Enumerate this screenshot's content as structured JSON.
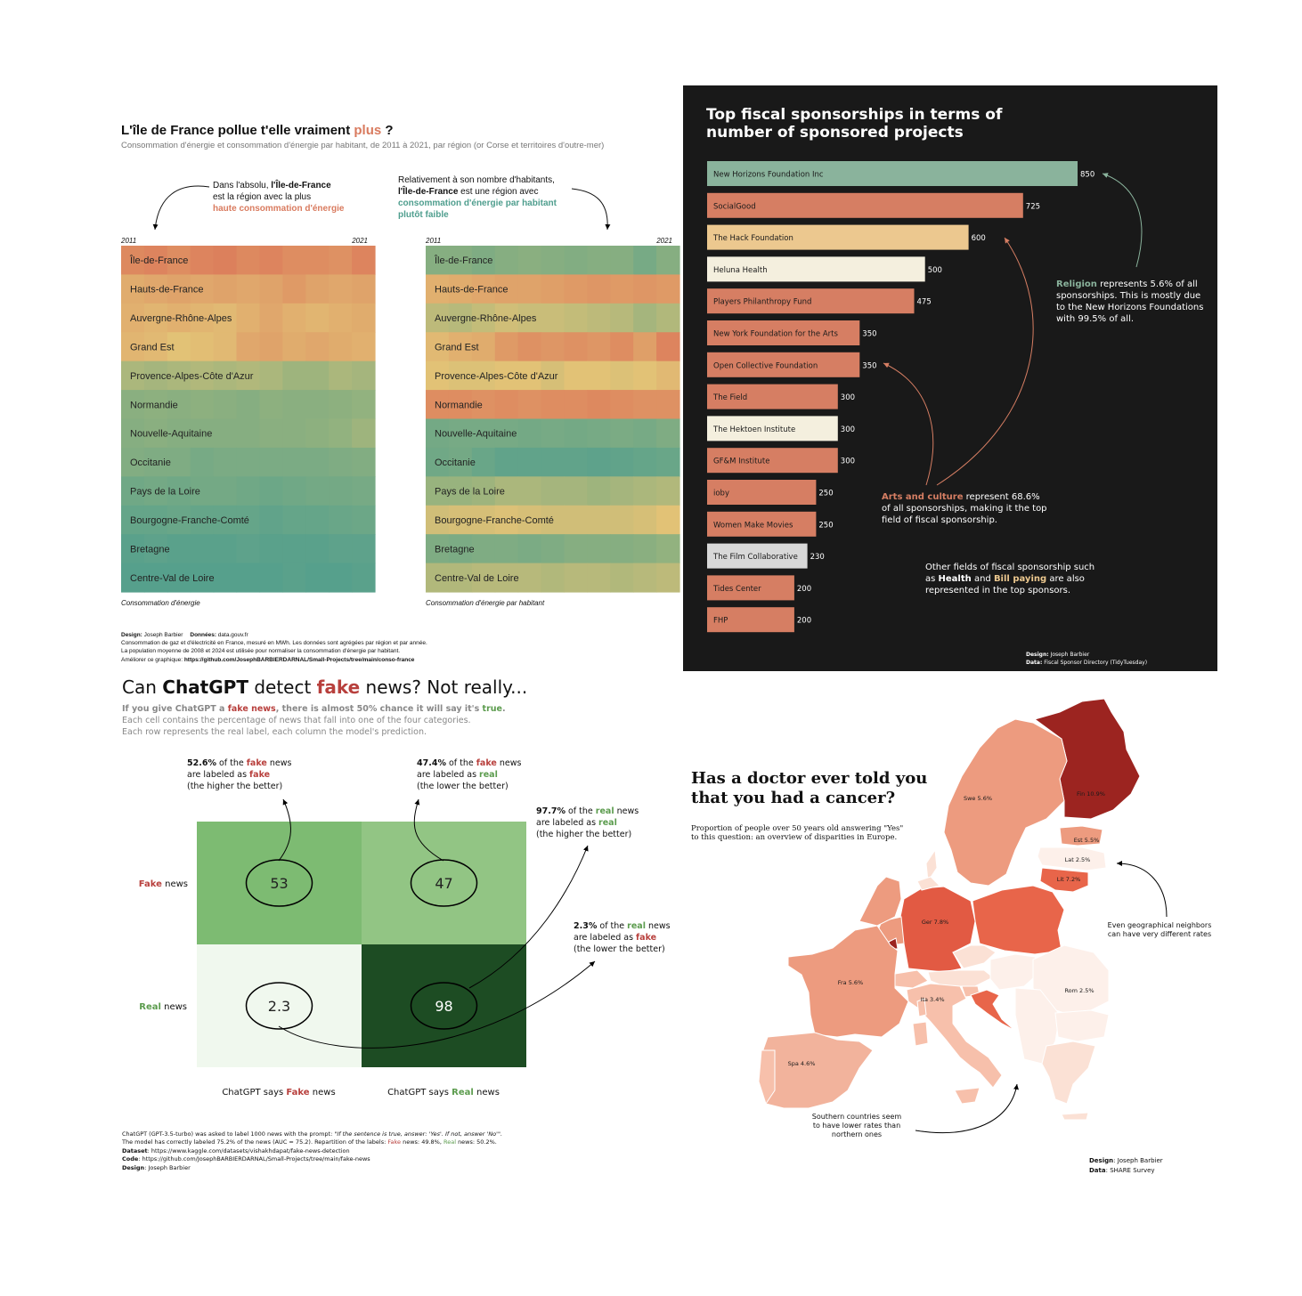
{
  "colors": {
    "orange": "#d97b5f",
    "teal": "#4f9e8e",
    "green_label": "#5c9c4e",
    "red_label": "#b8403d",
    "dark_bg": "#191919",
    "sponsor_green": "#8ab39c",
    "sponsor_orange": "#d67e63",
    "sponsor_yellow": "#ecc88f",
    "sponsor_cream": "#f4efde",
    "sponsor_grey": "#d8d8d8"
  },
  "panel1": {
    "title_main": "L'île de France pollue t'elle vraiment ",
    "title_accent": "plus",
    "title_end": " ?",
    "subtitle": "Consommation d'énergie et consommation d'énergie par habitant, de 2011 à 2021, par région (or Corse et territoires d'outre-mer)",
    "ann_left": {
      "l1": "Dans l'absolu, ",
      "l1b": "l'Île-de-France",
      "l2": "est la région avec la plus",
      "l3": "haute consommation d'énergie"
    },
    "ann_right": {
      "l1": "Relativement à son nombre d'habitants,",
      "l2b": "l'Île-de-France",
      "l2": " est une région avec",
      "l3": "consommation d'énergie par habitant",
      "l4": "plutôt faible"
    },
    "year_start": "2011",
    "year_end": "2021",
    "caption_left": "Consommation d'énergie",
    "caption_right": "Consommation d'énergie par habitant",
    "footer": {
      "design_label": "Design:",
      "design_value": " Joseph Barbier",
      "data_label": "Données:",
      "data_value": " data.gouv.fr",
      "line2": "Consommation de gaz et d'électricité en France, mesuré en MWh. Les données sont agrégées par région et par année.",
      "line3": "La population moyenne de 2008 et 2024 est utilisée pour normaliser la consommation d'énergie par habitant.",
      "line4_label": "Améliorer ce graphique: ",
      "line4_value": "https://github.com/JosephBARBIERDARNAL/Small-Projects/tree/main/conso-france"
    },
    "chart_data": [
      {
        "type": "heatmap",
        "title": "Consommation d'énergie",
        "x": [
          "2011",
          "2021"
        ],
        "rows": [
          "Île-de-France",
          "Hauts-de-France",
          "Auvergne-Rhône-Alpes",
          "Grand Est",
          "Provence-Alpes-Côte d'Azur",
          "Normandie",
          "Nouvelle-Aquitaine",
          "Occitanie",
          "Pays de la Loire",
          "Bourgogne-Franche-Comté",
          "Bretagne",
          "Centre-Val de Loire"
        ],
        "levels": [
          [
            0.88,
            0.9,
            0.86,
            0.9,
            0.92,
            0.88,
            0.9,
            0.86,
            0.86,
            0.84,
            0.9
          ],
          [
            0.72,
            0.74,
            0.76,
            0.74,
            0.76,
            0.74,
            0.76,
            0.8,
            0.76,
            0.74,
            0.76
          ],
          [
            0.7,
            0.68,
            0.7,
            0.68,
            0.66,
            0.7,
            0.74,
            0.7,
            0.68,
            0.7,
            0.72
          ],
          [
            0.68,
            0.66,
            0.62,
            0.64,
            0.66,
            0.74,
            0.76,
            0.72,
            0.74,
            0.72,
            0.7
          ],
          [
            0.44,
            0.42,
            0.44,
            0.46,
            0.44,
            0.46,
            0.44,
            0.4,
            0.4,
            0.44,
            0.42
          ],
          [
            0.32,
            0.34,
            0.32,
            0.34,
            0.32,
            0.3,
            0.34,
            0.32,
            0.32,
            0.34,
            0.36
          ],
          [
            0.3,
            0.32,
            0.3,
            0.3,
            0.3,
            0.3,
            0.32,
            0.32,
            0.34,
            0.36,
            0.4
          ],
          [
            0.28,
            0.26,
            0.26,
            0.22,
            0.24,
            0.24,
            0.24,
            0.24,
            0.24,
            0.26,
            0.28
          ],
          [
            0.18,
            0.2,
            0.18,
            0.2,
            0.2,
            0.18,
            0.16,
            0.18,
            0.2,
            0.2,
            0.22
          ],
          [
            0.12,
            0.12,
            0.14,
            0.12,
            0.12,
            0.12,
            0.1,
            0.12,
            0.12,
            0.14,
            0.16
          ],
          [
            0.06,
            0.08,
            0.06,
            0.06,
            0.06,
            0.08,
            0.06,
            0.06,
            0.06,
            0.08,
            0.08
          ],
          [
            0.04,
            0.04,
            0.04,
            0.04,
            0.04,
            0.04,
            0.04,
            0.06,
            0.04,
            0.04,
            0.06
          ]
        ]
      },
      {
        "type": "heatmap",
        "title": "Consommation d'énergie par habitant",
        "x": [
          "2011",
          "2021"
        ],
        "rows": [
          "Île-de-France",
          "Hauts-de-France",
          "Auvergne-Rhône-Alpes",
          "Grand Est",
          "Provence-Alpes-Côte d'Azur",
          "Normandie",
          "Nouvelle-Aquitaine",
          "Occitanie",
          "Pays de la Loire",
          "Bourgogne-Franche-Comté",
          "Bretagne",
          "Centre-Val de Loire"
        ],
        "levels": [
          [
            0.3,
            0.3,
            0.26,
            0.3,
            0.32,
            0.3,
            0.28,
            0.3,
            0.3,
            0.22,
            0.3
          ],
          [
            0.7,
            0.72,
            0.74,
            0.76,
            0.76,
            0.78,
            0.8,
            0.82,
            0.8,
            0.82,
            0.8
          ],
          [
            0.5,
            0.48,
            0.52,
            0.56,
            0.54,
            0.54,
            0.52,
            0.5,
            0.48,
            0.42,
            0.46
          ],
          [
            0.66,
            0.7,
            0.72,
            0.8,
            0.84,
            0.82,
            0.84,
            0.82,
            0.86,
            0.78,
            0.9
          ],
          [
            0.62,
            0.6,
            0.6,
            0.62,
            0.62,
            0.58,
            0.62,
            0.62,
            0.6,
            0.62,
            0.66
          ],
          [
            0.86,
            0.86,
            0.84,
            0.86,
            0.84,
            0.86,
            0.86,
            0.88,
            0.86,
            0.84,
            0.84
          ],
          [
            0.2,
            0.22,
            0.22,
            0.22,
            0.2,
            0.22,
            0.2,
            0.22,
            0.24,
            0.22,
            0.26
          ],
          [
            0.18,
            0.2,
            0.14,
            0.1,
            0.1,
            0.1,
            0.1,
            0.08,
            0.1,
            0.12,
            0.14
          ],
          [
            0.38,
            0.38,
            0.4,
            0.44,
            0.44,
            0.42,
            0.42,
            0.4,
            0.42,
            0.44,
            0.46
          ],
          [
            0.56,
            0.58,
            0.58,
            0.6,
            0.58,
            0.56,
            0.56,
            0.56,
            0.56,
            0.58,
            0.62
          ],
          [
            0.26,
            0.24,
            0.26,
            0.26,
            0.24,
            0.26,
            0.3,
            0.3,
            0.3,
            0.32,
            0.36
          ],
          [
            0.46,
            0.46,
            0.48,
            0.48,
            0.48,
            0.46,
            0.48,
            0.48,
            0.46,
            0.48,
            0.5
          ]
        ]
      }
    ]
  },
  "panel2": {
    "title_l1": "Top fiscal sponsorships in terms of",
    "title_l2": "number of sponsored projects",
    "ann_religion": {
      "b": "Religion",
      "t1": " represents 5.6% of all",
      "t2": "sponsorships. This is mostly due",
      "t3": "to the New Horizons Foundations",
      "t4": "with 99.5% of all."
    },
    "ann_arts": {
      "b": "Arts and culture",
      "t1": " represent 68.6%",
      "t2": "of all sponsorships, making it the top",
      "t3": "field of fiscal sponsorship."
    },
    "ann_other": {
      "t1": "Other fields of fiscal sponsorship such",
      "t2a": "as ",
      "t2b": "Health",
      "t2c": " and ",
      "t2d": "Bill paying",
      "t2e": " are also",
      "t3": "represented in the top sponsors."
    },
    "footer": {
      "design_label": "Design:",
      "design_value": " Joseph Barbier",
      "data_label": "Data:",
      "data_value": " Fiscal Sponsor Directory (TidyTuesday)"
    },
    "chart_data": {
      "type": "bar",
      "orientation": "horizontal",
      "title": "Top fiscal sponsorships in terms of number of sponsored projects",
      "categories": [
        "New Horizons Foundation Inc",
        "SocialGood",
        "The Hack Foundation",
        "Heluna Health",
        "Players Philanthropy Fund",
        "New York Foundation for the Arts",
        "Open Collective Foundation",
        "The Field",
        "The Hektoen Institute",
        "GF&M Institute",
        "ioby",
        "Women Make Movies",
        "The Film Collaborative",
        "Tides Center",
        "FHP"
      ],
      "values": [
        850,
        725,
        600,
        500,
        475,
        350,
        350,
        300,
        300,
        300,
        250,
        250,
        230,
        200,
        200
      ],
      "value_labels": [
        "850",
        "725",
        "600",
        "500",
        "475",
        "350",
        "350",
        "300",
        "300",
        "300",
        "250",
        "250",
        "230",
        "200",
        "200"
      ],
      "fields": [
        "religion",
        "arts",
        "arts",
        "health",
        "arts",
        "arts",
        "arts",
        "arts",
        "health",
        "arts",
        "arts",
        "arts",
        "other",
        "arts",
        "arts"
      ]
    }
  },
  "panel3": {
    "title_a": "Can ",
    "title_b": "ChatGPT",
    "title_c": " detect ",
    "title_d": "fake",
    "title_e": " news? Not really...",
    "sub1_a": "If you give ChatGPT a ",
    "sub1_b": "fake news",
    "sub1_c": ", there is almost 50% chance it will say it's ",
    "sub1_d": "true",
    "sub1_e": ".",
    "sub2": "Each cell contains the percentage of news that fall into one of the four categories.",
    "sub3": "Each row represents the real label, each column the model's prediction.",
    "ann1": {
      "a": "52.6%",
      "b": " of the ",
      "c": "fake",
      "d": " news",
      "e": "are labeled as ",
      "f": "fake",
      "g": "(the higher the better)"
    },
    "ann2": {
      "a": "47.4%",
      "b": " of the ",
      "c": "fake",
      "d": " news",
      "e": "are labeled as ",
      "f": "real",
      "g": "(the lower the better)"
    },
    "ann3": {
      "a": "97.7%",
      "b": " of the ",
      "c": "real",
      "d": " news",
      "e": "are labeled as ",
      "f": "real",
      "g": "(the higher the better)"
    },
    "ann4": {
      "a": "2.3%",
      "b": " of the ",
      "c": "real",
      "d": " news",
      "e": "are labeled as ",
      "f": "fake",
      "g": "(the lower the better)"
    },
    "row_fake_a": "Fake",
    "row_fake_b": " news",
    "row_real_a": "Real",
    "row_real_b": " news",
    "col_fake_a": "ChatGPT says ",
    "col_fake_b": "Fake",
    "col_fake_c": " news",
    "col_real_a": "ChatGPT says ",
    "col_real_b": "Real",
    "col_real_c": " news",
    "footer": {
      "l1a": "ChatGPT (GPT-3.5-turbo) was asked to label 1000 news with the prompt: ",
      "l1b": "\"If the sentence is true, answer: 'Yes'. If not, answer 'No'\".",
      "l2a": "The model has correctly labeled 75.2% of the news (AUC = 75.2). Repartition of the labels: ",
      "l2b": "Fake",
      "l2c": " news: 49.8%, ",
      "l2d": "Real",
      "l2e": " news: 50.2%.",
      "l3a": "Dataset",
      "l3b": ": https://www.kaggle.com/datasets/vishakhdapat/fake-news-detection",
      "l4a": "Code",
      "l4b": ": https://github.com/JosephBARBIERDARNAL/Small-Projects/tree/main/fake-news",
      "l5a": "Design",
      "l5b": ": Joseph Barbier"
    },
    "chart_data": {
      "type": "heatmap",
      "rows": [
        "Fake news",
        "Real news"
      ],
      "columns": [
        "ChatGPT says Fake news",
        "ChatGPT says Real news"
      ],
      "values": [
        [
          53,
          47
        ],
        [
          2.3,
          98
        ]
      ],
      "value_labels": [
        [
          "53",
          "47"
        ],
        [
          "2.3",
          "98"
        ]
      ]
    }
  },
  "panel4": {
    "title_l1": "Has a doctor ever told you",
    "title_l2": "that you had a cancer?",
    "sub_l1": "Proportion of people over 50 years old answering \"Yes\"",
    "sub_l2": "to this question: an overview of disparities in Europe.",
    "ann_right_l1": "Even geographical neighbors",
    "ann_right_l2": "can have very different rates",
    "ann_bottom_l1": "Southern countries seem",
    "ann_bottom_l2": "to have lower rates than",
    "ann_bottom_l3": "northern ones",
    "footer": {
      "design_label": "Design",
      "design_value": ": Joseph Barbier",
      "data_label": "Data",
      "data_value": ": SHARE Survey"
    },
    "chart_data": {
      "type": "choropleth",
      "title": "Has a doctor ever told you that you had a cancer?",
      "labels": [
        "Fin 10.9%",
        "Swe 5.6%",
        "Est 5.5%",
        "Lat 2.5%",
        "Lit 7.2%",
        "Ger 7.8%",
        "Fra 5.6%",
        "Ita 3.4%",
        "Rom 2.5%",
        "Spa 4.6%"
      ],
      "values": [
        10.9,
        5.6,
        5.5,
        2.5,
        7.2,
        7.8,
        5.6,
        3.4,
        2.5,
        4.6
      ]
    }
  }
}
